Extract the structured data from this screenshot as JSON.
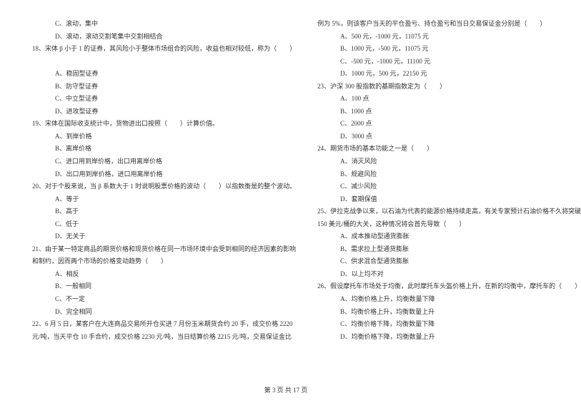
{
  "left": {
    "lines": [
      {
        "text": "C、滚动，集中",
        "cls": "indent1"
      },
      {
        "text": "D、滚动，滚动交割笔集中交割相结合",
        "cls": "indent1"
      },
      {
        "text": "18、宋体 β 小于 1 的证券，其风险小于整体市场组合的风险，收益也相对较低，称为（　　）",
        "cls": "indent2"
      },
      {
        "text": "",
        "cls": "indent2"
      },
      {
        "text": "A、稳固型证券",
        "cls": "indent1"
      },
      {
        "text": "B、防守型证券",
        "cls": "indent1"
      },
      {
        "text": "C、中立型证券",
        "cls": "indent1"
      },
      {
        "text": "D、进攻型证券",
        "cls": "indent1"
      },
      {
        "text": "19、宋体在国际收支统计中，货物进出口按照（　　）计算价值。",
        "cls": "indent2"
      },
      {
        "text": "A、到岸价格",
        "cls": "indent1"
      },
      {
        "text": "B、离岸价格",
        "cls": "indent1"
      },
      {
        "text": "C、进口用到岸价格，出口用离岸价格",
        "cls": "indent1"
      },
      {
        "text": "D、出口用到岸价格，进口用离岸价格",
        "cls": "indent1"
      },
      {
        "text": "20、对于个股来说，当 β 系数大于 1 时说明股票价格的波动（　　）以指数衡是的整个波动。",
        "cls": "indent2"
      },
      {
        "text": "A、等于",
        "cls": "indent1"
      },
      {
        "text": "B、高于",
        "cls": "indent1"
      },
      {
        "text": "C、低于",
        "cls": "indent1"
      },
      {
        "text": "D、无关于",
        "cls": "indent1"
      },
      {
        "text": "21、由于某一特定商品的期货价格和现货价格在同一市场环境中会受到相同的经济因素的影响",
        "cls": "indent2"
      },
      {
        "text": "和制约，因而两个市场的价格变动趋势（　　）",
        "cls": "indent2"
      },
      {
        "text": "A、相反",
        "cls": "indent1"
      },
      {
        "text": "B、一般相同",
        "cls": "indent1"
      },
      {
        "text": "C、不一定",
        "cls": "indent1"
      },
      {
        "text": "D、完全相同",
        "cls": "indent1"
      },
      {
        "text": "22、6 月 5 日，某客户在大连商品交易所开仓买进 7 月份玉米期货合约 20 手，成交价格 2220",
        "cls": "indent2"
      },
      {
        "text": "元/吨，当天平仓 10 手合约，成交价格 2230 元/吨，当日结算价格 2215 元/吨，交易保证金比",
        "cls": "indent2"
      }
    ]
  },
  "right": {
    "lines": [
      {
        "text": "例为 5%，则该客户当天的平仓盈亏、持仓盈亏和当日交易保证金分别是（　　）",
        "cls": "indent2"
      },
      {
        "text": "A、500 元，-1000 元，11075 元",
        "cls": "indent1"
      },
      {
        "text": "B、1000 元，-500 元，11075 元",
        "cls": "indent1"
      },
      {
        "text": "C、-500 元，-1000 元，11100 元",
        "cls": "indent1"
      },
      {
        "text": "D、1000 元，500 元，22150 元",
        "cls": "indent1"
      },
      {
        "text": "23、沪深 300 股指数的基期指数定为（　　）",
        "cls": "indent2"
      },
      {
        "text": "A、100 点",
        "cls": "indent1"
      },
      {
        "text": "B、1000 点",
        "cls": "indent1"
      },
      {
        "text": "C、2000 点",
        "cls": "indent1"
      },
      {
        "text": "D、3000 点",
        "cls": "indent1"
      },
      {
        "text": "24、期货市场的基本功能之一是（　　）",
        "cls": "indent2"
      },
      {
        "text": "A、消灭风险",
        "cls": "indent1"
      },
      {
        "text": "B、规避风险",
        "cls": "indent1"
      },
      {
        "text": "C、减少风险",
        "cls": "indent1"
      },
      {
        "text": "D、套期保值",
        "cls": "indent1"
      },
      {
        "text": "25、伊拉克战争以来，以石油为代表的能源价格持续走高，有关专家预计石油价格不久将突破",
        "cls": "indent2"
      },
      {
        "text": "150 美元/桶的大关，这种情况将会首先导致（　　）",
        "cls": "indent2"
      },
      {
        "text": "A、成本推动型通货膨胀",
        "cls": "indent1"
      },
      {
        "text": "B、需求拉上型通货膨胀",
        "cls": "indent1"
      },
      {
        "text": "C、供求混合型通货膨胀",
        "cls": "indent1"
      },
      {
        "text": "D、以上均不对",
        "cls": "indent1"
      },
      {
        "text": "26、假设摩托车市场处于均衡，此时摩托车头盔价格上升，在新的均衡中，摩托车的（　　）",
        "cls": "indent2"
      },
      {
        "text": "A、均衡价格上升，均衡数量下降",
        "cls": "indent1"
      },
      {
        "text": "B、均衡价格上升，均衡数量上升",
        "cls": "indent1"
      },
      {
        "text": "C、均衡价格下降，均衡数量下降",
        "cls": "indent1"
      },
      {
        "text": "D、均衡价格下降，均衡数量上升",
        "cls": "indent1"
      }
    ]
  },
  "footer": "第 3 页 共 17 页"
}
